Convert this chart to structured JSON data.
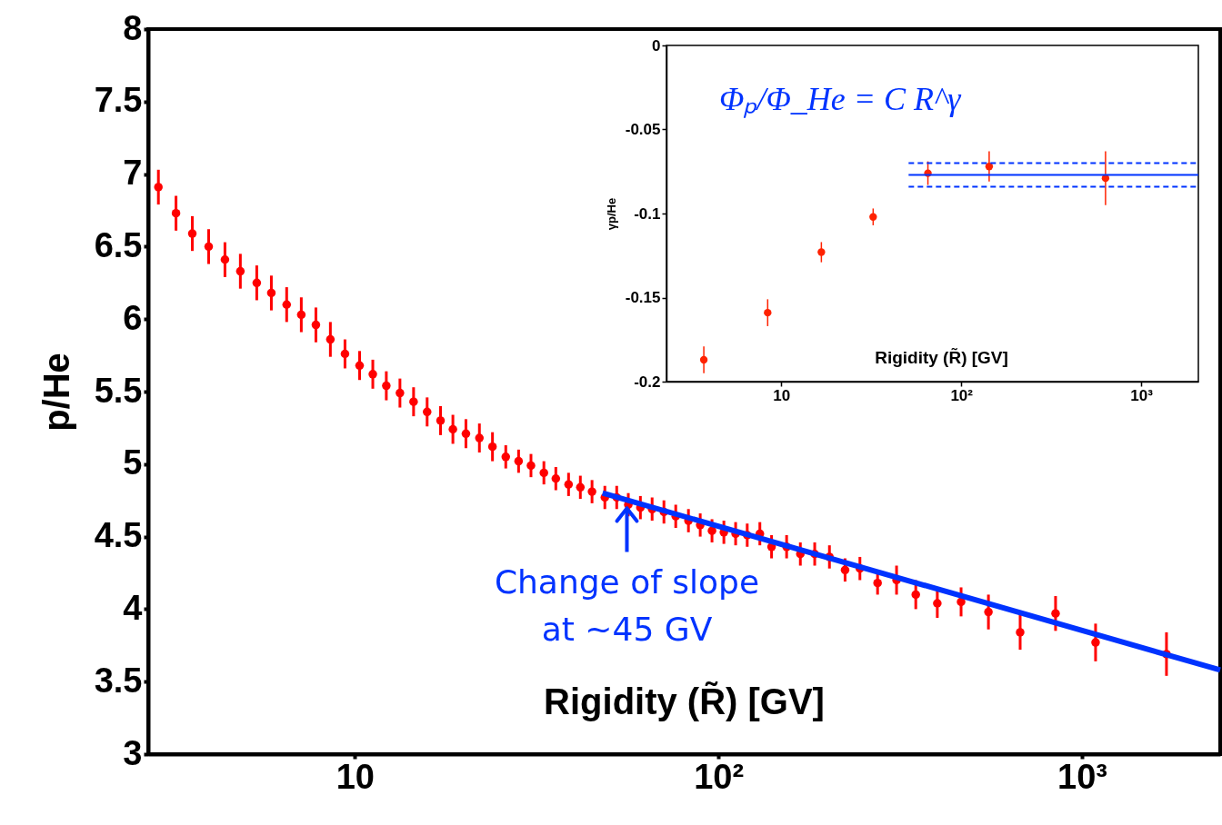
{
  "chart_data": [
    {
      "type": "scatter",
      "xlabel": "Rigidity (R̃) [GV]",
      "ylabel": "p/He",
      "log": "x",
      "xlim": [
        2.7,
        2400
      ],
      "ylim": [
        3,
        8
      ],
      "xticks": [
        {
          "value": 10,
          "label": "10"
        },
        {
          "value": 100,
          "label": "10²"
        },
        {
          "value": 1000,
          "label": "10³"
        }
      ],
      "yticks": [
        3,
        3.5,
        4,
        4.5,
        5,
        5.5,
        6,
        6.5,
        7,
        7.5,
        8
      ],
      "grid": false,
      "series": [
        {
          "type": "scatter",
          "marker": "circle",
          "color": "#ff0000",
          "x": [
            2.88,
            3.22,
            3.57,
            3.96,
            4.39,
            4.84,
            5.37,
            5.89,
            6.49,
            7.12,
            7.81,
            8.56,
            9.39,
            10.3,
            11.2,
            12.2,
            13.3,
            14.5,
            15.8,
            17.2,
            18.6,
            20.2,
            22.0,
            23.9,
            26.0,
            28.2,
            30.5,
            33.1,
            35.7,
            38.7,
            41.7,
            44.9,
            48.7,
            52.5,
            56.5,
            61.0,
            65.7,
            70.8,
            76.3,
            82.7,
            89.1,
            96.0,
            103.5,
            111.5,
            120,
            130,
            140,
            154,
            168,
            184,
            202,
            223,
            245,
            274,
            309,
            349,
            400,
            465,
            553,
            676,
            846,
            1090,
            1708
          ],
          "values": [
            6.91,
            6.73,
            6.59,
            6.5,
            6.41,
            6.33,
            6.25,
            6.18,
            6.1,
            6.03,
            5.96,
            5.86,
            5.76,
            5.68,
            5.62,
            5.54,
            5.49,
            5.43,
            5.36,
            5.3,
            5.24,
            5.21,
            5.18,
            5.12,
            5.05,
            5.02,
            4.99,
            4.94,
            4.9,
            4.86,
            4.84,
            4.81,
            4.77,
            4.77,
            4.72,
            4.7,
            4.69,
            4.67,
            4.64,
            4.61,
            4.58,
            4.54,
            4.53,
            4.52,
            4.51,
            4.52,
            4.43,
            4.43,
            4.38,
            4.38,
            4.36,
            4.27,
            4.28,
            4.18,
            4.2,
            4.1,
            4.04,
            4.05,
            3.98,
            3.84,
            3.97,
            3.77,
            3.69
          ],
          "errors": [
            0.12,
            0.12,
            0.12,
            0.12,
            0.12,
            0.12,
            0.12,
            0.12,
            0.12,
            0.12,
            0.12,
            0.12,
            0.1,
            0.1,
            0.1,
            0.1,
            0.1,
            0.1,
            0.1,
            0.1,
            0.1,
            0.1,
            0.1,
            0.1,
            0.08,
            0.08,
            0.08,
            0.08,
            0.08,
            0.08,
            0.08,
            0.08,
            0.08,
            0.08,
            0.08,
            0.08,
            0.08,
            0.08,
            0.08,
            0.08,
            0.08,
            0.08,
            0.08,
            0.08,
            0.08,
            0.08,
            0.08,
            0.08,
            0.08,
            0.08,
            0.08,
            0.08,
            0.08,
            0.08,
            0.1,
            0.1,
            0.1,
            0.1,
            0.12,
            0.12,
            0.12,
            0.13,
            0.15
          ]
        },
        {
          "type": "line",
          "color": "#0033ff",
          "line_style": "solid",
          "x": [
            48,
            2400
          ],
          "values": [
            4.8,
            3.58
          ]
        }
      ],
      "annotations": [
        {
          "text": "Change of slope\nat ~45 GV",
          "x": 56,
          "y": 4.72
        }
      ]
    },
    {
      "type": "scatter",
      "xlabel": "Rigidity (R̃) [GV]",
      "ylabel": "γp/He",
      "log": "x",
      "xlim": [
        2.3,
        2080
      ],
      "ylim": [
        -0.2,
        0
      ],
      "xticks": [
        {
          "value": 10,
          "label": "10"
        },
        {
          "value": 100,
          "label": "10²"
        },
        {
          "value": 1000,
          "label": "10³"
        }
      ],
      "yticks": [
        0,
        -0.05,
        -0.1,
        -0.15,
        -0.2
      ],
      "grid": false,
      "series": [
        {
          "type": "scatter",
          "marker": "circle",
          "color": "#ff2200",
          "x": [
            3.71,
            8.4,
            16.7,
            32.4,
            65.3,
            143,
            634
          ],
          "values": [
            -0.187,
            -0.159,
            -0.123,
            -0.102,
            -0.076,
            -0.072,
            -0.079
          ],
          "errors": [
            0.008,
            0.008,
            0.006,
            0.005,
            0.007,
            0.009,
            0.016
          ]
        },
        {
          "type": "line",
          "color": "#0033ff",
          "line_style": "solid",
          "x": [
            51,
            2080
          ],
          "values": [
            -0.077,
            -0.077
          ]
        },
        {
          "type": "line",
          "color": "#0033ff",
          "line_style": "dashed",
          "x": [
            51,
            2080
          ],
          "values": [
            -0.07,
            -0.07
          ]
        },
        {
          "type": "line",
          "color": "#0033ff",
          "line_style": "dashed",
          "x": [
            51,
            2080
          ],
          "values": [
            -0.084,
            -0.084
          ]
        }
      ],
      "annotations": [
        "Φₚ/Φ_He = C R^γ"
      ]
    }
  ]
}
